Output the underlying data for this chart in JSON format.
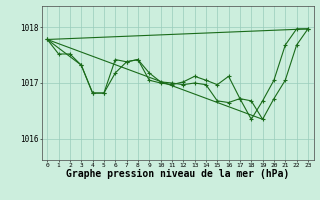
{
  "background_color": "#cceedd",
  "grid_color": "#99ccbb",
  "line_color": "#1a6b1a",
  "xlabel": "Graphe pression niveau de la mer (hPa)",
  "xlabel_fontsize": 7,
  "ylim": [
    1015.62,
    1018.38
  ],
  "xlim": [
    -0.5,
    23.5
  ],
  "xticks": [
    0,
    1,
    2,
    3,
    4,
    5,
    6,
    7,
    8,
    9,
    10,
    11,
    12,
    13,
    14,
    15,
    16,
    17,
    18,
    19,
    20,
    21,
    22,
    23
  ],
  "yticks": [
    1016,
    1017,
    1018
  ],
  "series1": [
    [
      0,
      1017.78
    ],
    [
      1,
      1017.52
    ],
    [
      2,
      1017.52
    ],
    [
      3,
      1017.32
    ],
    [
      4,
      1016.82
    ],
    [
      5,
      1016.82
    ],
    [
      6,
      1017.42
    ],
    [
      7,
      1017.38
    ],
    [
      8,
      1017.42
    ],
    [
      9,
      1017.05
    ],
    [
      10,
      1017.0
    ],
    [
      11,
      1016.97
    ],
    [
      12,
      1017.02
    ],
    [
      13,
      1017.12
    ],
    [
      14,
      1017.05
    ],
    [
      15,
      1016.97
    ],
    [
      16,
      1017.12
    ],
    [
      17,
      1016.72
    ],
    [
      18,
      1016.68
    ],
    [
      19,
      1016.35
    ],
    [
      20,
      1016.72
    ],
    [
      21,
      1017.05
    ],
    [
      22,
      1017.68
    ],
    [
      23,
      1017.97
    ]
  ],
  "series2": [
    [
      0,
      1017.78
    ],
    [
      3,
      1017.32
    ],
    [
      4,
      1016.82
    ],
    [
      5,
      1016.82
    ],
    [
      6,
      1017.18
    ],
    [
      7,
      1017.38
    ],
    [
      8,
      1017.42
    ],
    [
      9,
      1017.18
    ],
    [
      10,
      1017.02
    ],
    [
      11,
      1017.0
    ],
    [
      12,
      1016.97
    ],
    [
      13,
      1017.0
    ],
    [
      14,
      1016.97
    ],
    [
      15,
      1016.68
    ],
    [
      16,
      1016.65
    ],
    [
      17,
      1016.72
    ],
    [
      18,
      1016.35
    ],
    [
      19,
      1016.68
    ],
    [
      20,
      1017.05
    ],
    [
      21,
      1017.68
    ],
    [
      22,
      1017.97
    ],
    [
      23,
      1017.97
    ]
  ],
  "line_upper": [
    [
      0,
      1017.78
    ],
    [
      23,
      1017.97
    ]
  ],
  "line_lower": [
    [
      0,
      1017.78
    ],
    [
      19,
      1016.35
    ]
  ]
}
